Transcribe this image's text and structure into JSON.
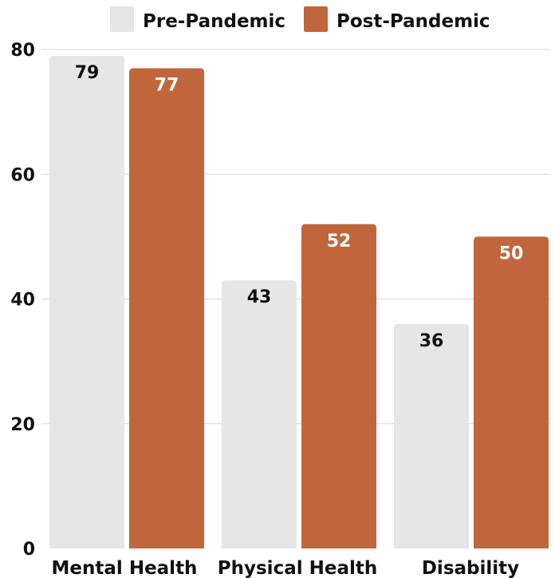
{
  "chart_data": {
    "type": "bar",
    "categories": [
      "Mental Health",
      "Physical Health",
      "Disability"
    ],
    "series": [
      {
        "name": "Pre-Pandemic",
        "values": [
          79,
          43,
          36
        ],
        "color": "#e6e6e6",
        "label_color": "#111111"
      },
      {
        "name": "Post-Pandemic",
        "values": [
          77,
          52,
          50
        ],
        "color": "#c1663c",
        "label_color": "#ffffff"
      }
    ],
    "title": "",
    "xlabel": "",
    "ylabel": "",
    "ylim": [
      0,
      80
    ],
    "yticks": [
      0,
      20,
      40,
      60,
      80
    ],
    "grid": true,
    "legend_position": "top-center"
  }
}
